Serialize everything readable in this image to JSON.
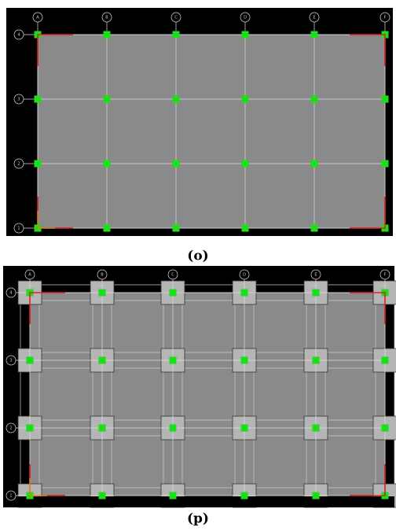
{
  "figures": [
    {
      "caption": "(o)",
      "column_labels": [
        "A",
        "B",
        "C",
        "D",
        "E",
        "F"
      ],
      "row_labels": [
        "4",
        "3",
        "2",
        "1"
      ]
    },
    {
      "caption": "(p)",
      "column_labels": [
        "A",
        "B",
        "C",
        "D",
        "E",
        "F"
      ],
      "row_labels": [
        "4",
        "3",
        "2",
        "1"
      ]
    }
  ]
}
